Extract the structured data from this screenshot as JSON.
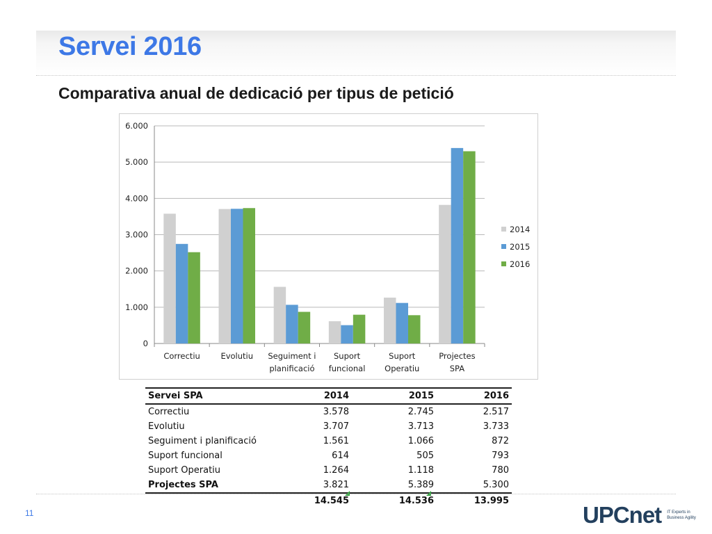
{
  "slide": {
    "title": "Servei 2016",
    "subtitle": "Comparativa anual de dedicació per tipus de petició",
    "page_number": "11"
  },
  "logo": {
    "text": "UPCnet",
    "tagline_line1": "IT Experts in",
    "tagline_line2": "Business Agility"
  },
  "chart_data": {
    "type": "bar",
    "categories": [
      "Correctiu",
      "Evolutiu",
      "Seguiment i planificació",
      "Suport funcional",
      "Suport Operatiu",
      "Projectes SPA"
    ],
    "category_lines": [
      [
        "Correctiu"
      ],
      [
        "Evolutiu"
      ],
      [
        "Seguiment i",
        "planificació"
      ],
      [
        "Suport",
        "funcional"
      ],
      [
        "Suport",
        "Operatiu"
      ],
      [
        "Projectes",
        "SPA"
      ]
    ],
    "series": [
      {
        "name": "2014",
        "color": "#d0d0d0",
        "values": [
          3578,
          3707,
          1561,
          614,
          1264,
          3821
        ]
      },
      {
        "name": "2015",
        "color": "#5b9bd5",
        "values": [
          2745,
          3713,
          1066,
          505,
          1118,
          5389
        ]
      },
      {
        "name": "2016",
        "color": "#70ad47",
        "values": [
          2517,
          3733,
          872,
          793,
          780,
          5300
        ]
      }
    ],
    "ylim": [
      0,
      6000
    ],
    "yticks": [
      0,
      1000,
      2000,
      3000,
      4000,
      5000,
      6000
    ],
    "ytick_labels": [
      "0",
      "1.000",
      "2.000",
      "3.000",
      "4.000",
      "5.000",
      "6.000"
    ],
    "legend_position": "right",
    "grid": true
  },
  "table": {
    "headers": [
      "Servei SPA",
      "2014",
      "2015",
      "2016"
    ],
    "rows": [
      [
        "Correctiu",
        "3.578",
        "2.745",
        "2.517"
      ],
      [
        "Evolutiu",
        "3.707",
        "3.713",
        "3.733"
      ],
      [
        "Seguiment i planificació",
        "1.561",
        "1.066",
        "872"
      ],
      [
        "Suport funcional",
        "614",
        "505",
        "793"
      ],
      [
        "Suport Operatiu",
        "1.264",
        "1.118",
        "780"
      ],
      [
        "Projectes SPA",
        "3.821",
        "5.389",
        "5.300"
      ]
    ],
    "totals": [
      "",
      "14.545",
      "14.536",
      "13.995"
    ]
  }
}
